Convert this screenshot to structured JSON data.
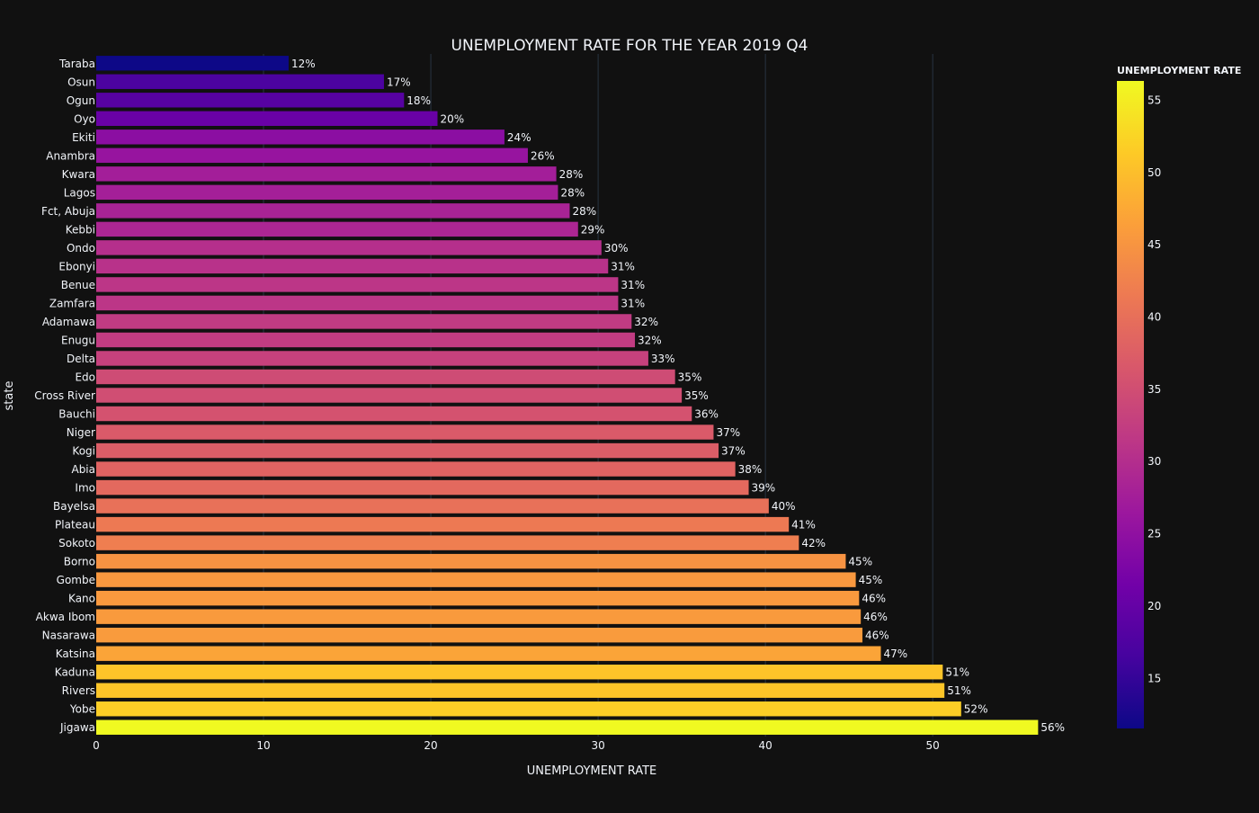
{
  "chart_data": {
    "type": "bar",
    "orientation": "horizontal",
    "title": "UNEMPLOYMENT RATE FOR THE YEAR 2019 Q4",
    "xlabel": "UNEMPLOYMENT RATE",
    "ylabel": "state",
    "xlim": [
      0,
      58
    ],
    "x_ticks": [
      0,
      10,
      20,
      30,
      40,
      50
    ],
    "grid": true,
    "value_suffix": "%",
    "categories": [
      "Taraba",
      "Osun",
      "Ogun",
      "Oyo",
      "Ekiti",
      "Anambra",
      "Kwara",
      "Lagos",
      "Fct, Abuja",
      "Kebbi",
      "Ondo",
      "Ebonyi",
      "Benue",
      "Zamfara",
      "Adamawa",
      "Enugu",
      "Delta",
      "Edo",
      "Cross River",
      "Bauchi",
      "Niger",
      "Kogi",
      "Abia",
      "Imo",
      "Bayelsa",
      "Plateau",
      "Sokoto",
      "Borno",
      "Gombe",
      "Kano",
      "Akwa Ibom",
      "Nasarawa",
      "Katsina",
      "Kaduna",
      "Rivers",
      "Yobe",
      "Jigawa"
    ],
    "values": [
      11.5,
      17.2,
      18.4,
      20.4,
      24.4,
      25.8,
      27.5,
      27.6,
      28.3,
      28.8,
      30.2,
      30.6,
      31.2,
      31.2,
      32.0,
      32.2,
      33.0,
      34.6,
      35.0,
      35.6,
      36.9,
      37.2,
      38.2,
      39.0,
      40.2,
      41.4,
      42.0,
      44.8,
      45.4,
      45.6,
      45.7,
      45.8,
      46.9,
      50.6,
      50.7,
      51.7,
      56.3
    ],
    "data_labels": [
      "12%",
      "17%",
      "18%",
      "20%",
      "24%",
      "26%",
      "28%",
      "28%",
      "28%",
      "29%",
      "30%",
      "31%",
      "31%",
      "31%",
      "32%",
      "32%",
      "33%",
      "35%",
      "35%",
      "36%",
      "37%",
      "37%",
      "38%",
      "39%",
      "40%",
      "41%",
      "42%",
      "45%",
      "45%",
      "46%",
      "46%",
      "46%",
      "47%",
      "51%",
      "51%",
      "52%",
      "56%"
    ],
    "colorbar": {
      "title": "UNEMPLOYMENT RATE",
      "range": [
        11.5,
        56.3
      ],
      "ticks": [
        15,
        20,
        25,
        30,
        35,
        40,
        45,
        50,
        55
      ],
      "colorscale": [
        "#0d0887",
        "#46039f",
        "#7201a8",
        "#9c179e",
        "#bd3786",
        "#d8576b",
        "#ed7953",
        "#fb9f3a",
        "#fdca26",
        "#f0f921"
      ]
    },
    "colors": {
      "background": "#111111",
      "grid": "#283442",
      "text": "#f2f5fa"
    }
  }
}
